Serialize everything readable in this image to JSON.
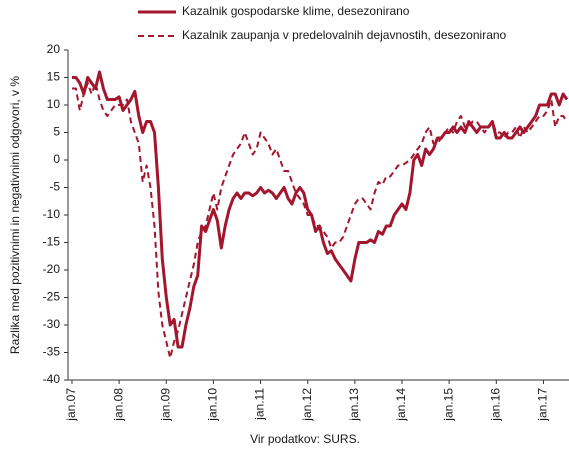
{
  "chart_data": {
    "type": "line",
    "y_label": "Razlika med pozitivnimi in negativnimi odgovori, v %",
    "source": "Vir podatkov: SURS.",
    "categories": [
      "jan.07",
      null,
      null,
      null,
      null,
      null,
      null,
      null,
      null,
      null,
      null,
      null,
      "jan.08",
      null,
      null,
      null,
      null,
      null,
      null,
      null,
      null,
      null,
      null,
      null,
      "jan.09",
      null,
      null,
      null,
      null,
      null,
      null,
      null,
      null,
      null,
      null,
      null,
      "jan.10",
      null,
      null,
      null,
      null,
      null,
      null,
      null,
      null,
      null,
      null,
      null,
      "jan.11",
      null,
      null,
      null,
      null,
      null,
      null,
      null,
      null,
      null,
      null,
      null,
      "jan.12",
      null,
      null,
      null,
      null,
      null,
      null,
      null,
      null,
      null,
      null,
      null,
      "jan.13",
      null,
      null,
      null,
      null,
      null,
      null,
      null,
      null,
      null,
      null,
      null,
      "jan.14",
      null,
      null,
      null,
      null,
      null,
      null,
      null,
      null,
      null,
      null,
      null,
      "jan.15",
      null,
      null,
      null,
      null,
      null,
      null,
      null,
      null,
      null,
      null,
      null,
      "jan.16",
      null,
      null,
      null,
      null,
      null,
      null,
      null,
      null,
      null,
      null,
      null,
      "jan.17",
      null,
      null,
      null,
      null,
      null,
      null
    ],
    "series": [
      {
        "name": "Kazalnik gospodarske klime, desezonirano",
        "color": "#a3162e",
        "dash": false,
        "values": [
          15,
          15,
          14,
          12,
          15,
          14,
          13,
          16,
          13,
          11,
          11,
          11,
          11.5,
          9,
          10,
          11,
          12.5,
          8,
          5,
          7,
          7,
          5,
          -5,
          -18,
          -25,
          -30,
          -29,
          -34,
          -34,
          -30,
          -27,
          -23,
          -21,
          -12,
          -13,
          -11,
          -9,
          -11,
          -16,
          -12,
          -9,
          -7,
          -6,
          -7,
          -6,
          -6,
          -6.5,
          -6,
          -5,
          -6,
          -5.5,
          -6,
          -7,
          -6,
          -5,
          -7,
          -8,
          -6,
          -5,
          -6,
          -9,
          -10,
          -13,
          -12,
          -15,
          -17,
          -16.5,
          -18,
          -19,
          -20,
          -21,
          -22,
          -18,
          -15,
          -15,
          -15,
          -14.5,
          -15,
          -13,
          -13.5,
          -12,
          -12,
          -10,
          -9,
          -8,
          -9,
          -6,
          0,
          1,
          -1,
          2,
          1,
          2,
          4,
          4,
          5,
          5,
          6,
          5,
          6,
          5,
          7,
          6,
          5,
          6,
          6,
          6,
          7,
          4,
          4,
          5,
          4,
          4,
          5,
          6,
          5,
          6,
          7,
          8,
          10,
          10,
          10,
          12,
          12,
          10,
          12,
          11
        ]
      },
      {
        "name": "Kazalnik zaupanja v predelovalnih dejavnostih, desezonirano",
        "color": "#a3162e",
        "dash": true,
        "values": [
          13,
          13,
          9,
          12,
          14,
          12,
          14,
          11,
          9,
          8,
          9,
          10,
          10,
          10,
          11,
          7,
          5,
          3,
          -4,
          -1,
          -5,
          -12,
          -24,
          -30,
          -33,
          -36,
          -33,
          -31,
          -28,
          -25,
          -22,
          -19,
          -15,
          -13,
          -12,
          -9,
          -6,
          -9,
          -5,
          -3,
          -1,
          1,
          2,
          3,
          5,
          3,
          1,
          2,
          5,
          4,
          3,
          1,
          2,
          0,
          -2,
          -2,
          -4,
          -6,
          -7,
          -8,
          -10,
          -10,
          -12,
          -12,
          -13,
          -14,
          -16,
          -15,
          -15,
          -14,
          -12,
          -10,
          -8,
          -7,
          -7,
          -8,
          -9,
          -6,
          -4,
          -4.5,
          -3,
          -3,
          -2,
          -1,
          -1,
          -0.5,
          0,
          1,
          2,
          3,
          5,
          6,
          3,
          3,
          4,
          5,
          6,
          5,
          7,
          8,
          6,
          6,
          7,
          7,
          6,
          5,
          6,
          7,
          5,
          5,
          4,
          5,
          5,
          6,
          4,
          6,
          5,
          6,
          7,
          8,
          8,
          9,
          11,
          6,
          8,
          8,
          7
        ]
      }
    ],
    "ylim": [
      -40,
      20
    ],
    "yticks": [
      -40,
      -35,
      -30,
      -25,
      -20,
      -15,
      -10,
      -5,
      0,
      5,
      10,
      15,
      20
    ]
  }
}
